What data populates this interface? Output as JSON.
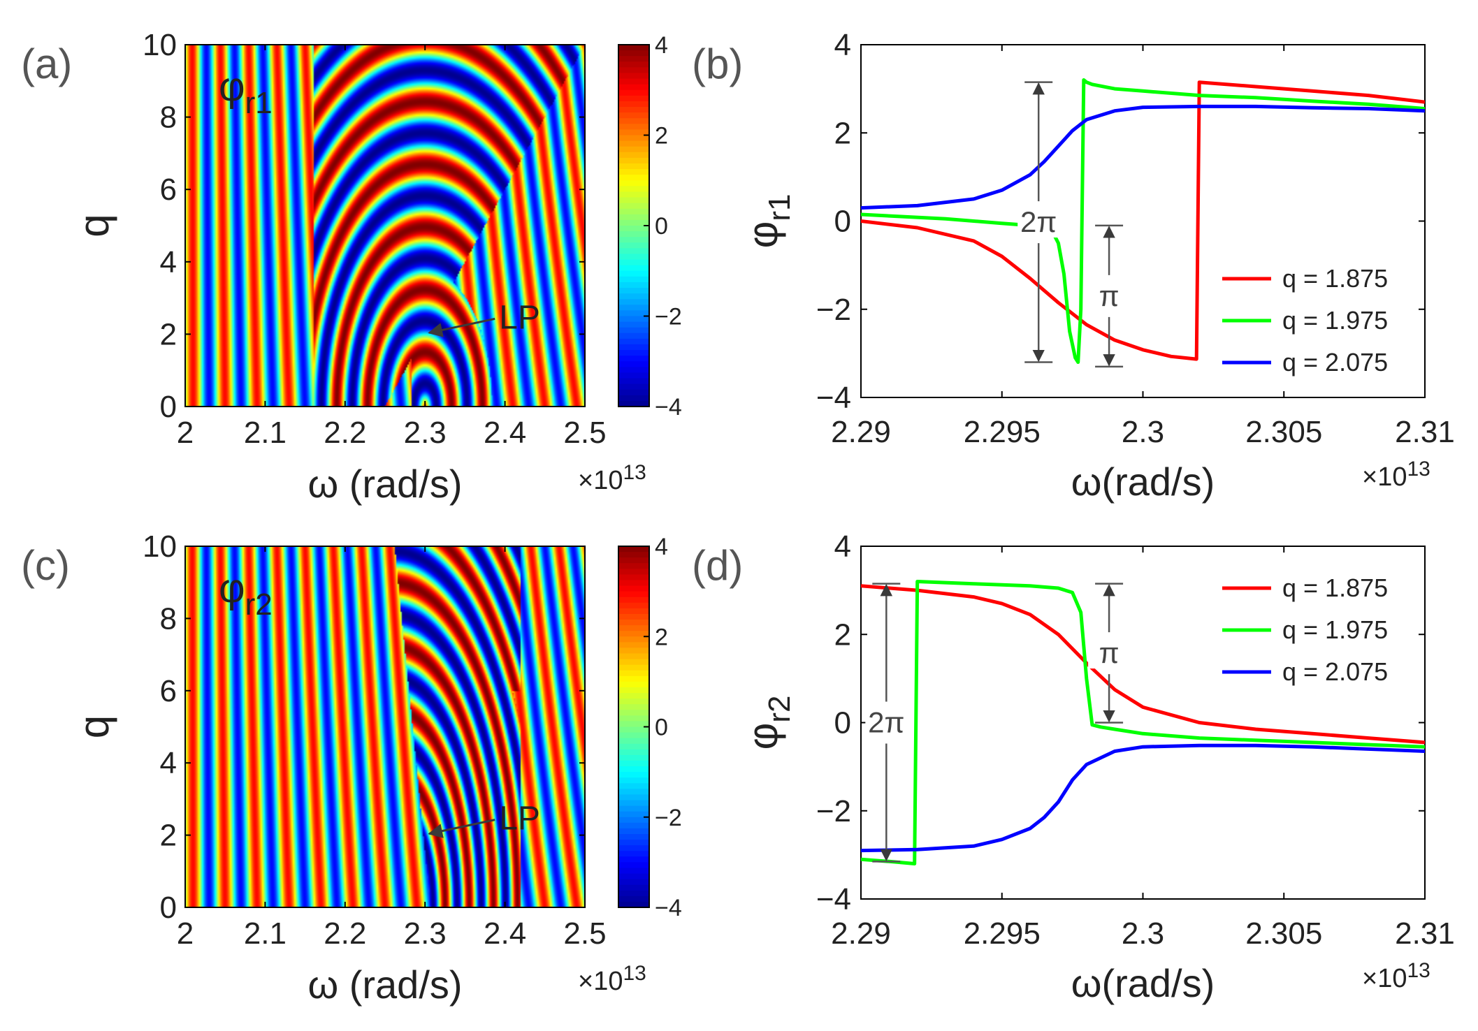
{
  "colormap": [
    "#00008f",
    "#0000ff",
    "#0080ff",
    "#00ffff",
    "#80ff80",
    "#ffff00",
    "#ff8000",
    "#ff0000",
    "#800000"
  ],
  "chart_data": [
    {
      "id": "a",
      "panel_label": "(a)",
      "type": "heatmap",
      "title": "φr1",
      "title_main": "φ",
      "title_sub": "r1",
      "xlabel": "ω (rad/s)",
      "ylabel": "q",
      "xlim": [
        2.0,
        2.5
      ],
      "ylim": [
        0,
        10
      ],
      "xticks": [
        "2",
        "2.1",
        "2.2",
        "2.3",
        "2.4",
        "2.5"
      ],
      "xtick_values": [
        2.0,
        2.1,
        2.2,
        2.3,
        2.4,
        2.5
      ],
      "yticks": [
        "0",
        "2",
        "4",
        "6",
        "8",
        "10"
      ],
      "ytick_values": [
        0,
        2,
        4,
        6,
        8,
        10
      ],
      "x_exponent_base": "×10",
      "x_exponent_power": "13",
      "colorbar": {
        "lim": [
          -4,
          4
        ],
        "ticks": [
          "-4",
          "-2",
          "0",
          "2",
          "4"
        ],
        "tick_values": [
          -4,
          -2,
          0,
          2,
          4
        ]
      },
      "annotation": {
        "text": "LP",
        "point": [
          2.3,
          2.0
        ]
      },
      "lp_point": [
        2.3,
        2.0
      ]
    },
    {
      "id": "b",
      "panel_label": "(b)",
      "type": "line",
      "xlabel": "ω(rad/s)",
      "ylabel": "φr1",
      "ylabel_main": "φ",
      "ylabel_sub": "r1",
      "xlim": [
        2.29,
        2.31
      ],
      "ylim": [
        -4,
        4
      ],
      "xticks": [
        "2.29",
        "2.295",
        "2.3",
        "2.305",
        "2.31"
      ],
      "xtick_values": [
        2.29,
        2.295,
        2.3,
        2.305,
        2.31
      ],
      "yticks": [
        "-4",
        "-2",
        "0",
        "2",
        "4"
      ],
      "ytick_values": [
        -4,
        -2,
        0,
        2,
        4
      ],
      "x_exponent_base": "×10",
      "x_exponent_power": "13",
      "legend": {
        "position": "lower-right",
        "entries": [
          "q = 1.875",
          "q = 1.975",
          "q = 2.075"
        ]
      },
      "series": [
        {
          "name": "q = 1.875",
          "color": "#ff0000",
          "x": [
            2.29,
            2.292,
            2.294,
            2.295,
            2.296,
            2.297,
            2.298,
            2.299,
            2.3,
            2.301,
            2.3019,
            2.302,
            2.304,
            2.306,
            2.308,
            2.31
          ],
          "y": [
            0.0,
            -0.15,
            -0.45,
            -0.8,
            -1.3,
            -1.85,
            -2.35,
            -2.7,
            -2.92,
            -3.07,
            -3.13,
            3.15,
            3.05,
            2.95,
            2.85,
            2.7
          ]
        },
        {
          "name": "q = 1.975",
          "color": "#00ff00",
          "x": [
            2.29,
            2.293,
            2.295,
            2.296,
            2.2965,
            2.2968,
            2.297,
            2.2972,
            2.2974,
            2.2976,
            2.2977,
            2.2978,
            2.2979,
            2.298,
            2.2982,
            2.299,
            2.3,
            2.302,
            2.304,
            2.306,
            2.308,
            2.31
          ],
          "y": [
            0.15,
            0.05,
            -0.05,
            -0.1,
            -0.15,
            -0.25,
            -0.5,
            -1.2,
            -2.5,
            -3.1,
            -3.2,
            -2.0,
            3.2,
            3.15,
            3.1,
            3.0,
            2.95,
            2.85,
            2.8,
            2.72,
            2.65,
            2.55
          ]
        },
        {
          "name": "q = 2.075",
          "color": "#0000ff",
          "x": [
            2.29,
            2.292,
            2.294,
            2.295,
            2.296,
            2.2965,
            2.297,
            2.2975,
            2.298,
            2.299,
            2.3,
            2.302,
            2.304,
            2.306,
            2.308,
            2.31
          ],
          "y": [
            0.3,
            0.35,
            0.5,
            0.7,
            1.05,
            1.35,
            1.7,
            2.05,
            2.3,
            2.5,
            2.58,
            2.6,
            2.6,
            2.57,
            2.55,
            2.5
          ]
        }
      ],
      "annotations": [
        {
          "text": "2π",
          "x": 2.2963,
          "y_from": -3.2,
          "y_to": 3.15
        },
        {
          "text": "π",
          "x": 2.2988,
          "y_from": -3.3,
          "y_to": -0.1
        }
      ]
    },
    {
      "id": "c",
      "panel_label": "(c)",
      "type": "heatmap",
      "title": "φr2",
      "title_main": "φ",
      "title_sub": "r2",
      "xlabel": "ω (rad/s)",
      "ylabel": "q",
      "xlim": [
        2.0,
        2.5
      ],
      "ylim": [
        0,
        10
      ],
      "xticks": [
        "2",
        "2.1",
        "2.2",
        "2.3",
        "2.4",
        "2.5"
      ],
      "xtick_values": [
        2.0,
        2.1,
        2.2,
        2.3,
        2.4,
        2.5
      ],
      "yticks": [
        "0",
        "2",
        "4",
        "6",
        "8",
        "10"
      ],
      "ytick_values": [
        0,
        2,
        4,
        6,
        8,
        10
      ],
      "x_exponent_base": "×10",
      "x_exponent_power": "13",
      "colorbar": {
        "lim": [
          -4,
          4
        ],
        "ticks": [
          "-4",
          "-2",
          "0",
          "2",
          "4"
        ],
        "tick_values": [
          -4,
          -2,
          0,
          2,
          4
        ]
      },
      "annotation": {
        "text": "LP",
        "point": [
          2.3,
          2.0
        ]
      },
      "lp_point": [
        2.3,
        2.0
      ]
    },
    {
      "id": "d",
      "panel_label": "(d)",
      "type": "line",
      "xlabel": "ω(rad/s)",
      "ylabel": "φr2",
      "ylabel_main": "φ",
      "ylabel_sub": "r2",
      "xlim": [
        2.29,
        2.31
      ],
      "ylim": [
        -4,
        4
      ],
      "xticks": [
        "2.29",
        "2.295",
        "2.3",
        "2.305",
        "2.31"
      ],
      "xtick_values": [
        2.29,
        2.295,
        2.3,
        2.305,
        2.31
      ],
      "yticks": [
        "-4",
        "-2",
        "0",
        "2",
        "4"
      ],
      "ytick_values": [
        -4,
        -2,
        0,
        2,
        4
      ],
      "x_exponent_base": "×10",
      "x_exponent_power": "13",
      "legend": {
        "position": "top-right",
        "entries": [
          "q = 1.875",
          "q = 1.975",
          "q = 2.075"
        ]
      },
      "series": [
        {
          "name": "q = 1.875",
          "color": "#ff0000",
          "x": [
            2.29,
            2.292,
            2.294,
            2.295,
            2.296,
            2.297,
            2.298,
            2.299,
            2.3,
            2.302,
            2.304,
            2.306,
            2.308,
            2.31
          ],
          "y": [
            3.1,
            3.0,
            2.85,
            2.7,
            2.45,
            2.0,
            1.35,
            0.75,
            0.35,
            0.0,
            -0.15,
            -0.25,
            -0.35,
            -0.45
          ]
        },
        {
          "name": "q = 1.975",
          "color": "#00ff00",
          "x": [
            2.29,
            2.291,
            2.2919,
            2.292,
            2.294,
            2.296,
            2.297,
            2.2975,
            2.2978,
            2.298,
            2.2982,
            2.2985,
            2.299,
            2.3,
            2.302,
            2.304,
            2.306,
            2.308,
            2.31
          ],
          "y": [
            -3.1,
            -3.15,
            -3.2,
            3.2,
            3.15,
            3.1,
            3.05,
            2.95,
            2.5,
            1.0,
            -0.05,
            -0.1,
            -0.15,
            -0.25,
            -0.35,
            -0.4,
            -0.45,
            -0.5,
            -0.55
          ]
        },
        {
          "name": "q = 2.075",
          "color": "#0000ff",
          "x": [
            2.29,
            2.292,
            2.294,
            2.295,
            2.296,
            2.2965,
            2.297,
            2.2975,
            2.298,
            2.299,
            2.3,
            2.302,
            2.304,
            2.306,
            2.308,
            2.31
          ],
          "y": [
            -2.9,
            -2.88,
            -2.8,
            -2.65,
            -2.4,
            -2.15,
            -1.8,
            -1.3,
            -0.95,
            -0.65,
            -0.55,
            -0.52,
            -0.52,
            -0.55,
            -0.6,
            -0.65
          ]
        }
      ],
      "annotations": [
        {
          "text": "2π",
          "x": 2.2909,
          "y_from": -3.15,
          "y_to": 3.15
        },
        {
          "text": "π",
          "x": 2.2988,
          "y_from": 0.0,
          "y_to": 3.15
        }
      ]
    }
  ]
}
